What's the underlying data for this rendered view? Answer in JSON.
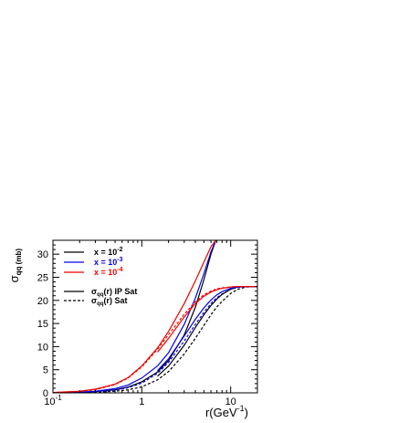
{
  "chart_data": {
    "type": "line",
    "title": "",
    "xlabel": "r(GeV",
    "xlabel_sup": "-1",
    "xlabel_close": ")",
    "ylabel": "σ",
    "ylabel_sub": "qq (mb)",
    "xscale": "log",
    "xlim": [
      0.1,
      20
    ],
    "ylim": [
      0,
      33
    ],
    "grid": false,
    "legend_position": "top-left",
    "x_ticks": [
      {
        "value": 0.1,
        "label": "10",
        "sup": "-1"
      },
      {
        "value": 1,
        "label": "1",
        "sup": ""
      },
      {
        "value": 10,
        "label": "10",
        "sup": ""
      }
    ],
    "y_ticks": [
      {
        "value": 0,
        "label": "0"
      },
      {
        "value": 5,
        "label": "5"
      },
      {
        "value": 10,
        "label": "10"
      },
      {
        "value": 15,
        "label": "15"
      },
      {
        "value": 20,
        "label": "20"
      },
      {
        "value": 25,
        "label": "25"
      },
      {
        "value": 30,
        "label": "30"
      }
    ],
    "legend_colors": [
      {
        "text": "x = 10",
        "sup": "-2",
        "color": "#000000"
      },
      {
        "text": "x = 10",
        "sup": "-3",
        "color": "#0000ee"
      },
      {
        "text": "x = 10",
        "sup": "-4",
        "color": "#ee0000"
      }
    ],
    "legend_styles": [
      {
        "text": "σ",
        "sub": "qq",
        "rest": "(r) IP Sat",
        "dash": "solid"
      },
      {
        "text": "σ",
        "sub": "qq",
        "rest": "(r) Sat",
        "dash": "dashed"
      }
    ],
    "series": [
      {
        "color": "#000000",
        "dash": "solid",
        "x": [
          0.1,
          0.2,
          0.3,
          0.5,
          0.7,
          1.0,
          1.5,
          2.0,
          3.0,
          4.0,
          5.0,
          6.0,
          6.8
        ],
        "y": [
          0.02,
          0.1,
          0.25,
          0.65,
          1.25,
          2.4,
          4.5,
          7.0,
          12.5,
          18.5,
          24.5,
          30.0,
          33.0
        ]
      },
      {
        "color": "#0000ee",
        "dash": "solid",
        "x": [
          0.1,
          0.2,
          0.3,
          0.5,
          0.7,
          1.0,
          1.5,
          2.0,
          3.0,
          4.0,
          5.0,
          6.0,
          6.8
        ],
        "y": [
          0.03,
          0.15,
          0.35,
          0.9,
          1.7,
          3.2,
          5.8,
          8.7,
          14.8,
          20.5,
          25.8,
          30.5,
          33.0
        ]
      },
      {
        "color": "#ee0000",
        "dash": "solid",
        "x": [
          0.1,
          0.2,
          0.3,
          0.5,
          0.7,
          1.0,
          1.5,
          2.0,
          3.0,
          4.0,
          5.0,
          6.0,
          6.8
        ],
        "y": [
          0.07,
          0.35,
          0.8,
          1.9,
          3.3,
          5.8,
          9.7,
          13.3,
          19.3,
          24.2,
          28.3,
          31.6,
          33.0
        ]
      },
      {
        "color": "#000000",
        "dash": "dashed",
        "x": [
          0.1,
          0.2,
          0.3,
          0.5,
          0.7,
          1.0,
          1.5,
          2.0,
          3.0,
          4.0,
          5.0,
          6.0,
          7.0,
          8.0,
          10.0,
          12.0,
          15.0,
          20.0
        ],
        "y": [
          0.01,
          0.05,
          0.12,
          0.35,
          0.65,
          1.3,
          2.8,
          4.6,
          8.4,
          11.8,
          14.6,
          16.9,
          18.6,
          19.8,
          21.5,
          22.4,
          22.9,
          23.0
        ]
      },
      {
        "color": "#0000ee",
        "dash": "dashed",
        "x": [
          0.1,
          0.2,
          0.3,
          0.5,
          0.7,
          1.0,
          1.5,
          2.0,
          3.0,
          4.0,
          5.0,
          6.0,
          7.0,
          8.0,
          10.0,
          12.0,
          15.0,
          20.0
        ],
        "y": [
          0.02,
          0.1,
          0.22,
          0.6,
          1.1,
          2.1,
          4.2,
          6.6,
          11.2,
          14.8,
          17.4,
          19.3,
          20.6,
          21.4,
          22.4,
          22.8,
          23.0,
          23.0
        ]
      },
      {
        "color": "#ee0000",
        "dash": "dashed",
        "x": [
          0.1,
          0.2,
          0.3,
          0.5,
          0.7,
          1.0,
          1.5,
          2.0,
          3.0,
          4.0,
          5.0,
          6.0,
          7.0,
          8.0,
          10.0,
          12.0,
          15.0,
          20.0
        ],
        "y": [
          0.05,
          0.3,
          0.7,
          1.8,
          3.2,
          5.6,
          9.4,
          12.6,
          17.0,
          19.7,
          21.2,
          22.0,
          22.5,
          22.7,
          22.9,
          23.0,
          23.0,
          23.0
        ]
      },
      {
        "color": "#000000",
        "dash": "solid",
        "x": [
          1.5,
          2.0,
          3.0,
          4.0,
          5.0,
          6.0,
          7.0,
          8.0,
          10.0,
          12.0,
          15.0,
          20.0
        ],
        "y": [
          3.6,
          5.8,
          10.3,
          14.1,
          16.9,
          18.9,
          20.3,
          21.3,
          22.4,
          22.9,
          23.0,
          23.0
        ]
      },
      {
        "color": "#0000ee",
        "dash": "solid",
        "x": [
          1.5,
          2.0,
          3.0,
          4.0,
          5.0,
          6.0,
          7.0,
          8.0,
          10.0,
          12.0,
          15.0,
          20.0
        ],
        "y": [
          4.8,
          7.4,
          12.3,
          15.9,
          18.4,
          20.1,
          21.2,
          21.9,
          22.6,
          22.9,
          23.0,
          23.0
        ]
      },
      {
        "color": "#ee0000",
        "dash": "solid",
        "x": [
          1.5,
          2.0,
          3.0,
          4.0,
          5.0,
          6.0,
          7.0,
          8.0,
          10.0,
          12.0,
          15.0,
          20.0
        ],
        "y": [
          8.8,
          11.8,
          16.4,
          19.3,
          20.9,
          21.8,
          22.3,
          22.6,
          22.9,
          23.0,
          23.0,
          23.0
        ]
      }
    ]
  }
}
